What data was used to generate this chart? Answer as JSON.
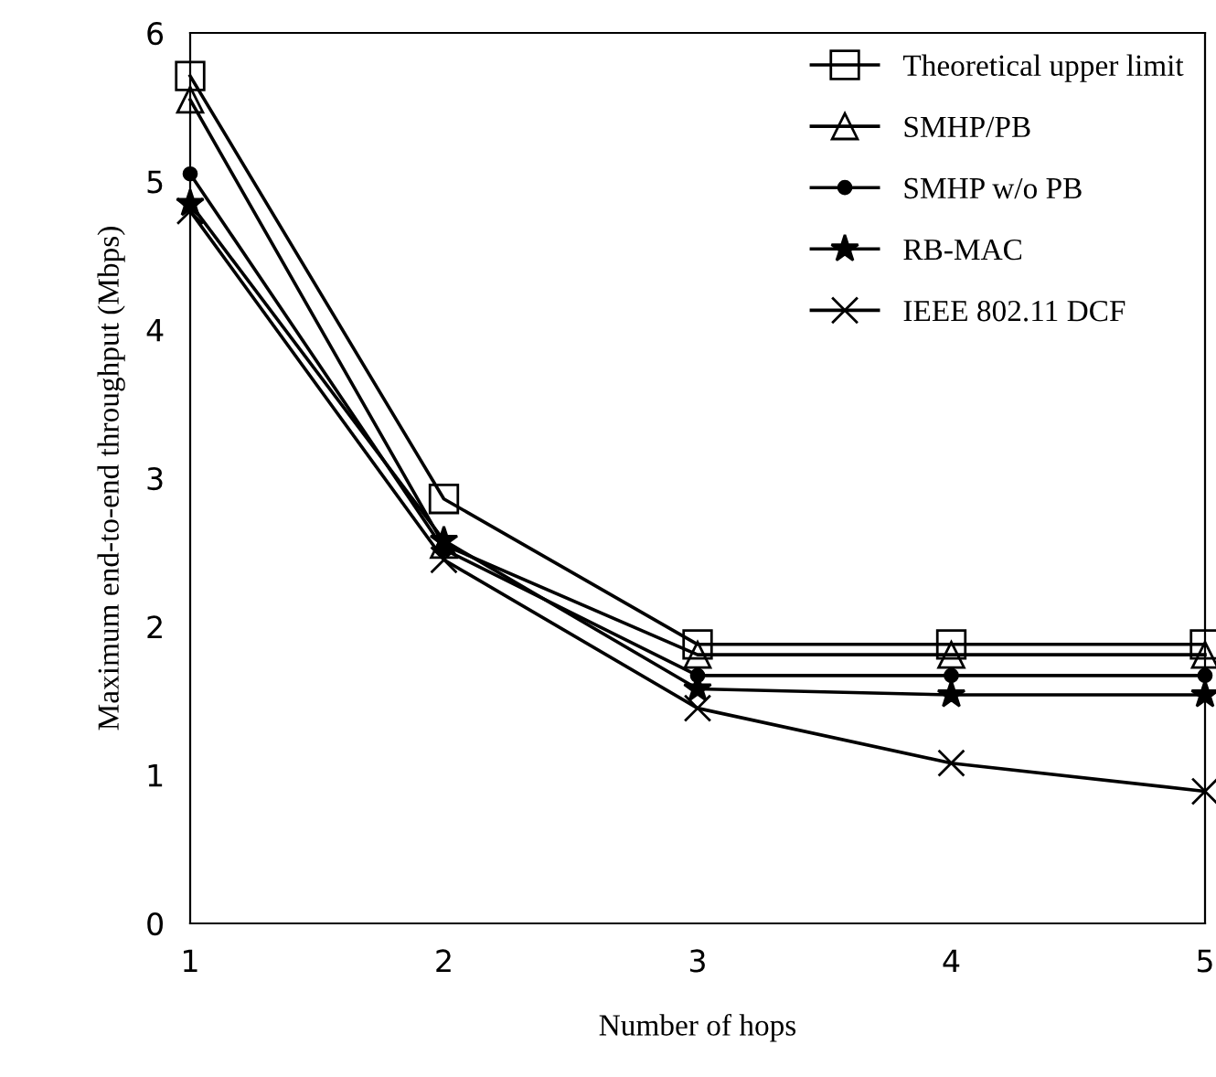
{
  "chart_data": {
    "type": "line",
    "xlabel": "Number of hops",
    "ylabel": "Maximum end-to-end throughput (Mbps)",
    "x": [
      1,
      2,
      3,
      4,
      5
    ],
    "xlim": [
      1,
      5
    ],
    "xticks": [
      1,
      2,
      3,
      4,
      5
    ],
    "ylim": [
      0,
      6
    ],
    "yticks": [
      0,
      1,
      2,
      3,
      4,
      5,
      6
    ],
    "grid": false,
    "legend": "top right",
    "series": [
      {
        "name": "Theoretical upper limit",
        "color": "#000000",
        "marker": "square",
        "values": [
          5.71,
          2.86,
          1.88,
          1.88,
          1.88
        ]
      },
      {
        "name": "SMHP/PB",
        "color": "#000000",
        "marker": "triangle",
        "values": [
          5.55,
          2.55,
          1.81,
          1.81,
          1.81
        ]
      },
      {
        "name": "SMHP w/o PB",
        "color": "#000000",
        "marker": "circle",
        "values": [
          5.05,
          2.52,
          1.67,
          1.67,
          1.67
        ]
      },
      {
        "name": "RB-MAC",
        "color": "#000000",
        "marker": "star",
        "values": [
          4.85,
          2.58,
          1.58,
          1.54,
          1.54
        ]
      },
      {
        "name": "IEEE 802.11 DCF",
        "color": "#000000",
        "marker": "cross",
        "values": [
          4.8,
          2.45,
          1.45,
          1.08,
          0.89
        ]
      }
    ]
  }
}
